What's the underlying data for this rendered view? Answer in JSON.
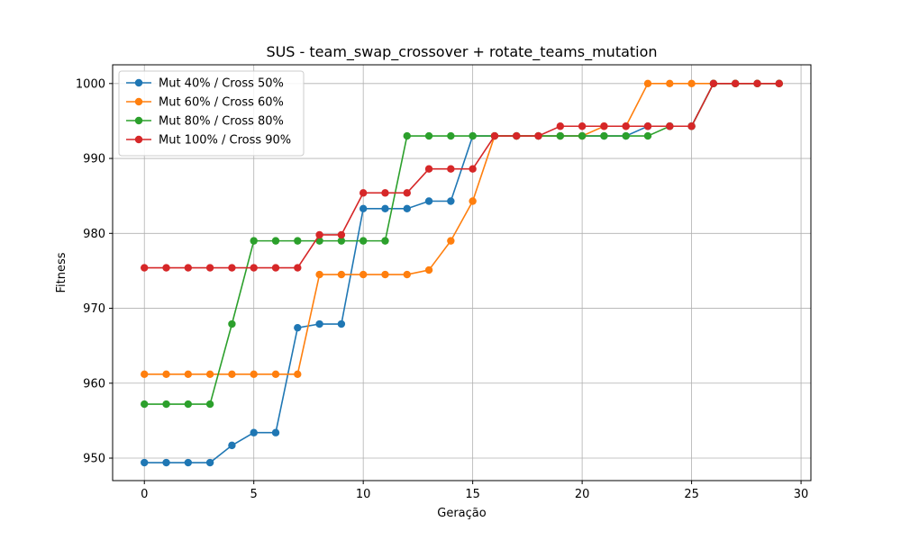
{
  "chart_data": {
    "type": "line",
    "title": "SUS - team_swap_crossover + rotate_teams_mutation",
    "xlabel": "Geração",
    "ylabel": "Fitness",
    "xlim": [
      -1.45,
      30.45
    ],
    "ylim": [
      947,
      1002.5
    ],
    "xticks": [
      0,
      5,
      10,
      15,
      20,
      25,
      30
    ],
    "yticks": [
      950,
      960,
      970,
      980,
      990,
      1000
    ],
    "grid": true,
    "legend_position": "top-left",
    "x": [
      0,
      1,
      2,
      3,
      4,
      5,
      6,
      7,
      8,
      9,
      10,
      11,
      12,
      13,
      14,
      15,
      16,
      17,
      18,
      19,
      20,
      21,
      22,
      23,
      24,
      25,
      26,
      27,
      28,
      29
    ],
    "series": [
      {
        "name": "Mut 40% / Cross 50%",
        "color": "#1f77b4",
        "values": [
          949.4,
          949.4,
          949.4,
          949.4,
          951.7,
          953.4,
          953.4,
          967.4,
          967.9,
          967.9,
          983.3,
          983.3,
          983.3,
          984.3,
          984.3,
          993.0,
          993.0,
          993.0,
          993.0,
          993.0,
          993.0,
          993.0,
          993.0,
          994.3,
          994.3,
          994.3,
          1000,
          1000,
          1000,
          1000
        ]
      },
      {
        "name": "Mut 60% / Cross 60%",
        "color": "#ff7f0e",
        "values": [
          961.2,
          961.2,
          961.2,
          961.2,
          961.2,
          961.2,
          961.2,
          961.2,
          974.5,
          974.5,
          974.5,
          974.5,
          974.5,
          975.1,
          979.0,
          984.3,
          993.0,
          993.0,
          993.0,
          993.0,
          993.0,
          994.3,
          994.3,
          1000,
          1000,
          1000,
          1000,
          1000,
          1000,
          1000
        ]
      },
      {
        "name": "Mut 80% / Cross 80%",
        "color": "#2ca02c",
        "values": [
          957.2,
          957.2,
          957.2,
          957.2,
          967.9,
          979.0,
          979.0,
          979.0,
          979.0,
          979.0,
          979.0,
          979.0,
          993.0,
          993.0,
          993.0,
          993.0,
          993.0,
          993.0,
          993.0,
          993.0,
          993.0,
          993.0,
          993.0,
          993.0,
          994.3,
          994.3,
          1000,
          1000,
          1000,
          1000
        ]
      },
      {
        "name": "Mut 100% / Cross 90%",
        "color": "#d62728",
        "values": [
          975.4,
          975.4,
          975.4,
          975.4,
          975.4,
          975.4,
          975.4,
          975.4,
          979.8,
          979.8,
          985.4,
          985.4,
          985.4,
          988.6,
          988.6,
          988.6,
          993.0,
          993.0,
          993.0,
          994.3,
          994.3,
          994.3,
          994.3,
          994.3,
          994.3,
          994.3,
          1000,
          1000,
          1000,
          1000
        ]
      }
    ]
  }
}
